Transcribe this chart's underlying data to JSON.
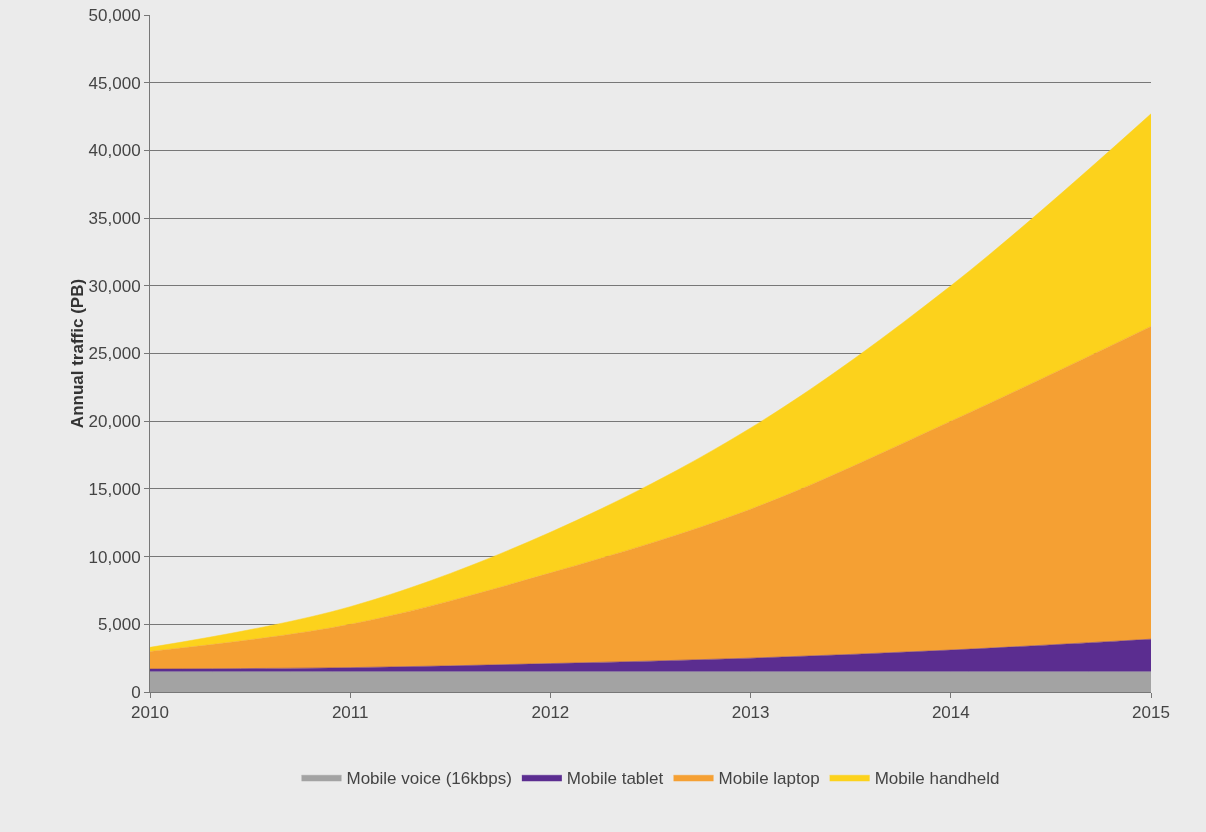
{
  "chart_data": {
    "type": "area",
    "stacked": true,
    "ylabel": "Annual traffic (PB)",
    "x": [
      2010,
      2011,
      2012,
      2013,
      2014,
      2015
    ],
    "xlim": [
      2010,
      2015
    ],
    "xticks": [
      2010,
      2011,
      2012,
      2013,
      2014,
      2015
    ],
    "ylim": [
      0,
      50000
    ],
    "yticks": [
      0,
      {
        "value": 5000,
        "label": "5,000"
      },
      {
        "value": 10000,
        "label": "10,000"
      },
      {
        "value": 15000,
        "label": "15,000"
      },
      {
        "value": 20000,
        "label": "20,000"
      },
      {
        "value": 25000,
        "label": "25,000"
      },
      {
        "value": 30000,
        "label": "30,000"
      },
      {
        "value": 35000,
        "label": "35,000"
      },
      {
        "value": 40000,
        "label": "40,000"
      },
      {
        "value": 45000,
        "label": "45,000"
      },
      {
        "value": 50000,
        "label": "50,000"
      }
    ],
    "grid": "y",
    "legend": "bottom",
    "series": [
      {
        "name": "Mobile voice (16kbps)",
        "color": "#a3a3a3",
        "values": [
          1500,
          1500,
          1500,
          1500,
          1500,
          1500
        ]
      },
      {
        "name": "Mobile tablet",
        "color": "#5b2d90",
        "values": [
          200,
          300,
          600,
          1000,
          1600,
          2400
        ]
      },
      {
        "name": "Mobile laptop",
        "color": "#f5a033",
        "values": [
          1300,
          3200,
          6700,
          11000,
          16900,
          23100
        ]
      },
      {
        "name": "Mobile handheld",
        "color": "#fcd21c",
        "values": [
          300,
          1300,
          3000,
          6000,
          10000,
          15700
        ]
      }
    ]
  }
}
